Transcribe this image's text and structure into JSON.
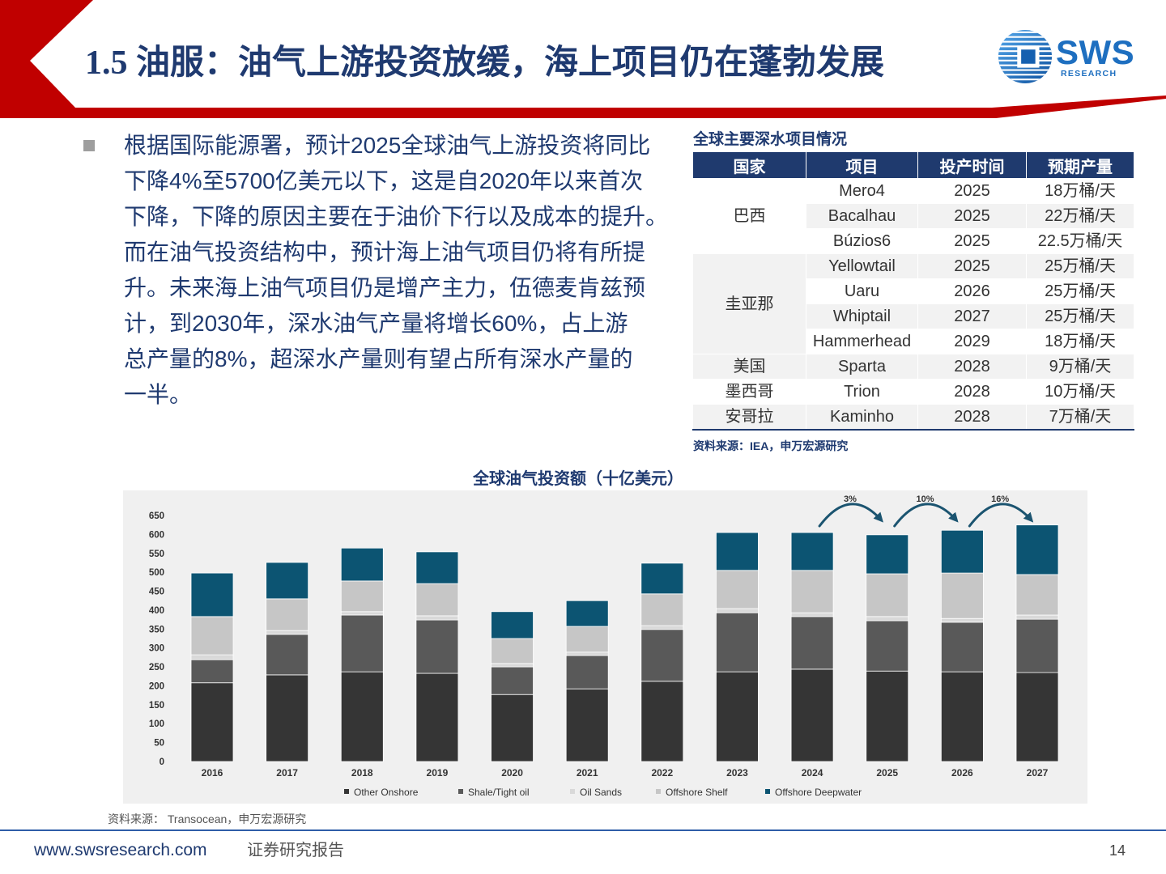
{
  "header": {
    "title": "1.5 油服：油气上游投资放缓，海上项目仍在蓬勃发展",
    "accent_color": "#C00000",
    "title_color": "#1F3A70"
  },
  "logo": {
    "name": "SWS",
    "sub": "RESEARCH",
    "color": "#1E6FC0"
  },
  "body": {
    "bullet_icon": "square-bullet-icon",
    "paragraph_lines": [
      "根据国际能源署，预计2025全球油气上游投资将同比",
      "下降4%至5700亿美元以下，这是自2020年以来首次",
      "下降，下降的原因主要在于油价下行以及成本的提升。",
      "而在油气投资结构中，预计海上油气项目仍将有所提",
      "升。未来海上油气项目仍是增产主力，伍德麦肯兹预",
      "计，到2030年，深水油气产量将增长60%，占上游",
      "总产量的8%，超深水产量则有望占所有深水产量的",
      "一半。"
    ]
  },
  "table": {
    "title": "全球主要深水项目情况",
    "headers": [
      "国家",
      "项目",
      "投产时间",
      "预期产量"
    ],
    "groups": [
      {
        "country": "巴西",
        "rows": [
          {
            "project": "Mero4",
            "year": "2025",
            "output": "18万桶/天"
          },
          {
            "project": "Bacalhau",
            "year": "2025",
            "output": "22万桶/天"
          },
          {
            "project": "Búzios6",
            "year": "2025",
            "output": "22.5万桶/天"
          }
        ]
      },
      {
        "country": "圭亚那",
        "rows": [
          {
            "project": "Yellowtail",
            "year": "2025",
            "output": "25万桶/天"
          },
          {
            "project": "Uaru",
            "year": "2026",
            "output": "25万桶/天"
          },
          {
            "project": "Whiptail",
            "year": "2027",
            "output": "25万桶/天"
          },
          {
            "project": "Hammerhead",
            "year": "2029",
            "output": "18万桶/天"
          }
        ]
      },
      {
        "country": "美国",
        "rows": [
          {
            "project": "Sparta",
            "year": "2028",
            "output": "9万桶/天"
          }
        ]
      },
      {
        "country": "墨西哥",
        "rows": [
          {
            "project": "Trion",
            "year": "2028",
            "output": "10万桶/天"
          }
        ]
      },
      {
        "country": "安哥拉",
        "rows": [
          {
            "project": "Kaminho",
            "year": "2028",
            "output": "7万桶/天"
          }
        ]
      }
    ],
    "source": "资料来源：IEA，申万宏源研究",
    "header_color": "#1F3A6E",
    "stripe_color": "#F2F2F2"
  },
  "chart_data": {
    "type": "bar",
    "stacked": true,
    "title": "全球油气投资额（十亿美元）",
    "xlabel": "",
    "ylabel": "",
    "categories": [
      "2016",
      "2017",
      "2018",
      "2019",
      "2020",
      "2021",
      "2022",
      "2023",
      "2024",
      "2025",
      "2026",
      "2027"
    ],
    "series": [
      {
        "name": "Other Onshore",
        "color": "#353535",
        "values": [
          208,
          229,
          237,
          233,
          177,
          192,
          212,
          237,
          244,
          239,
          237,
          235
        ]
      },
      {
        "name": "Shale/Tight oil",
        "color": "#595959",
        "values": [
          61,
          107,
          150,
          141,
          73,
          88,
          137,
          156,
          139,
          133,
          131,
          141
        ]
      },
      {
        "name": "Oil Sands",
        "color": "#D9D9D9",
        "values": [
          13,
          10,
          9,
          11,
          9,
          9,
          10,
          11,
          10,
          11,
          10,
          11
        ]
      },
      {
        "name": "Offshore Shelf",
        "color": "#C6C6C6",
        "values": [
          101,
          84,
          81,
          85,
          66,
          68,
          84,
          101,
          112,
          113,
          120,
          107
        ]
      },
      {
        "name": "Offshore Deepwater",
        "color": "#0C5472",
        "values": [
          115,
          96,
          87,
          84,
          71,
          68,
          81,
          100,
          100,
          103,
          113,
          131
        ]
      }
    ],
    "ylim": [
      0,
      650
    ],
    "yticks": [
      0,
      50,
      100,
      150,
      200,
      250,
      300,
      350,
      400,
      450,
      500,
      550,
      600,
      650
    ],
    "grid": false,
    "legend": "bottom",
    "annotations": [
      {
        "from": "2024",
        "to": "2025",
        "label": "3%"
      },
      {
        "from": "2025",
        "to": "2026",
        "label": "10%"
      },
      {
        "from": "2026",
        "to": "2027",
        "label": "16%"
      }
    ],
    "annotation_color": "#1B5470",
    "source": "资料来源： Transocean，申万宏源研究"
  },
  "footer": {
    "website": "www.swsresearch.com",
    "label": "证券研究报告",
    "page_number": "14",
    "line_color": "#2F5DA8"
  }
}
